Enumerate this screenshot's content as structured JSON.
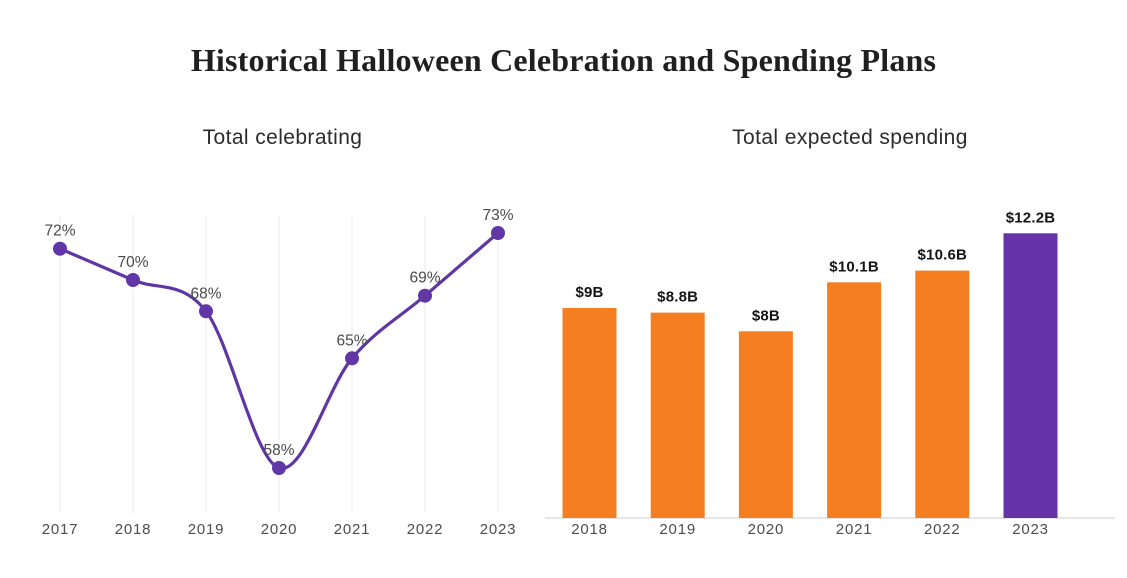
{
  "page": {
    "title": "Historical Halloween Celebration and Spending Plans",
    "background": "#ffffff"
  },
  "chart_data": [
    {
      "type": "line",
      "title": "Total celebrating",
      "categories": [
        "2017",
        "2018",
        "2019",
        "2020",
        "2021",
        "2022",
        "2023"
      ],
      "values": [
        72,
        70,
        68,
        58,
        65,
        69,
        73
      ],
      "labels": [
        "72%",
        "70%",
        "68%",
        "58%",
        "65%",
        "69%",
        "73%"
      ],
      "xlabel": "",
      "ylabel": "",
      "ylim": [
        56,
        75
      ],
      "grid": "vertical-only",
      "legend": "none",
      "line_color": "#5F36A3",
      "marker_color": "#6136A6",
      "gridline_color": "#ebebeb",
      "label_color": "#4a4a4a"
    },
    {
      "type": "bar",
      "title": "Total expected spending",
      "categories": [
        "2018",
        "2019",
        "2020",
        "2021",
        "2022",
        "2023"
      ],
      "values": [
        9,
        8.8,
        8,
        10.1,
        10.6,
        12.2
      ],
      "labels": [
        "$9B",
        "$8.8B",
        "$8B",
        "$10.1B",
        "$10.6B",
        "$12.2B"
      ],
      "xlabel": "",
      "ylabel": "",
      "ylim": [
        0,
        13
      ],
      "grid": "off",
      "legend": "none",
      "bar_colors": [
        "#F57E20",
        "#F57E20",
        "#F57E20",
        "#F57E20",
        "#F57E20",
        "#6733A8"
      ],
      "highlight_index": 5,
      "axis_line_color": "#d8d8d8",
      "label_color": "#141414"
    }
  ]
}
